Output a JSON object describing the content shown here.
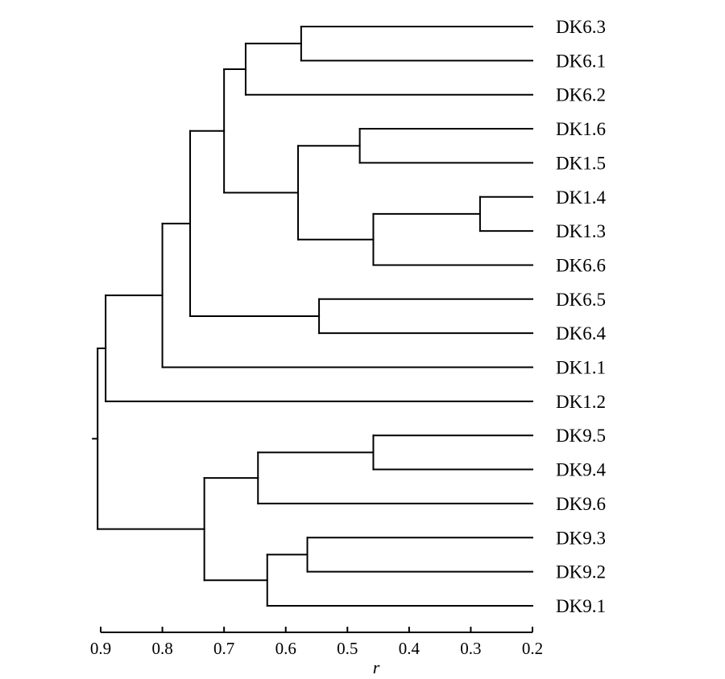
{
  "dendrogram": {
    "axis_label": "r",
    "axis_ticks": [
      "0.9",
      "0.8",
      "0.7",
      "0.6",
      "0.5",
      "0.4",
      "0.3",
      "0.2"
    ],
    "axis_tick_values": [
      0.9,
      0.8,
      0.7,
      0.6,
      0.5,
      0.4,
      0.3,
      0.2
    ],
    "axis_range": [
      0.905,
      0.2
    ],
    "leaves": [
      "DK6.3",
      "DK6.1",
      "DK6.2",
      "DK1.6",
      "DK1.5",
      "DK1.4",
      "DK1.3",
      "DK6.6",
      "DK6.5",
      "DK6.4",
      "DK1.1",
      "DK1.2",
      "DK9.5",
      "DK9.4",
      "DK9.6",
      "DK9.3",
      "DK9.2",
      "DK9.1"
    ],
    "leaf_value": 0.2,
    "merges": [
      {
        "id": "n1",
        "children": [
          "DK6.3",
          "DK6.1"
        ],
        "height": 0.575
      },
      {
        "id": "n2",
        "children": [
          "n1",
          "DK6.2"
        ],
        "height": 0.665
      },
      {
        "id": "n3",
        "children": [
          "DK1.6",
          "DK1.5"
        ],
        "height": 0.48
      },
      {
        "id": "n4",
        "children": [
          "DK1.4",
          "DK1.3"
        ],
        "height": 0.285
      },
      {
        "id": "n5",
        "children": [
          "n4",
          "DK6.6"
        ],
        "height": 0.458
      },
      {
        "id": "n6",
        "children": [
          "n3",
          "n5"
        ],
        "height": 0.58
      },
      {
        "id": "n7",
        "children": [
          "n2",
          "n6"
        ],
        "height": 0.7
      },
      {
        "id": "n8",
        "children": [
          "DK6.5",
          "DK6.4"
        ],
        "height": 0.546
      },
      {
        "id": "n9",
        "children": [
          "n7",
          "n8"
        ],
        "height": 0.755
      },
      {
        "id": "n10",
        "children": [
          "n9",
          "DK1.1"
        ],
        "height": 0.8
      },
      {
        "id": "n11",
        "children": [
          "n10",
          "DK1.2"
        ],
        "height": 0.892
      },
      {
        "id": "n12",
        "children": [
          "DK9.5",
          "DK9.4"
        ],
        "height": 0.458
      },
      {
        "id": "n13",
        "children": [
          "n12",
          "DK9.6"
        ],
        "height": 0.645
      },
      {
        "id": "n14",
        "children": [
          "DK9.3",
          "DK9.2"
        ],
        "height": 0.565
      },
      {
        "id": "n15",
        "children": [
          "n14",
          "DK9.1"
        ],
        "height": 0.63
      },
      {
        "id": "n16",
        "children": [
          "n13",
          "n15"
        ],
        "height": 0.732
      },
      {
        "id": "n17",
        "children": [
          "n11",
          "n16"
        ],
        "height": 0.905
      }
    ]
  }
}
